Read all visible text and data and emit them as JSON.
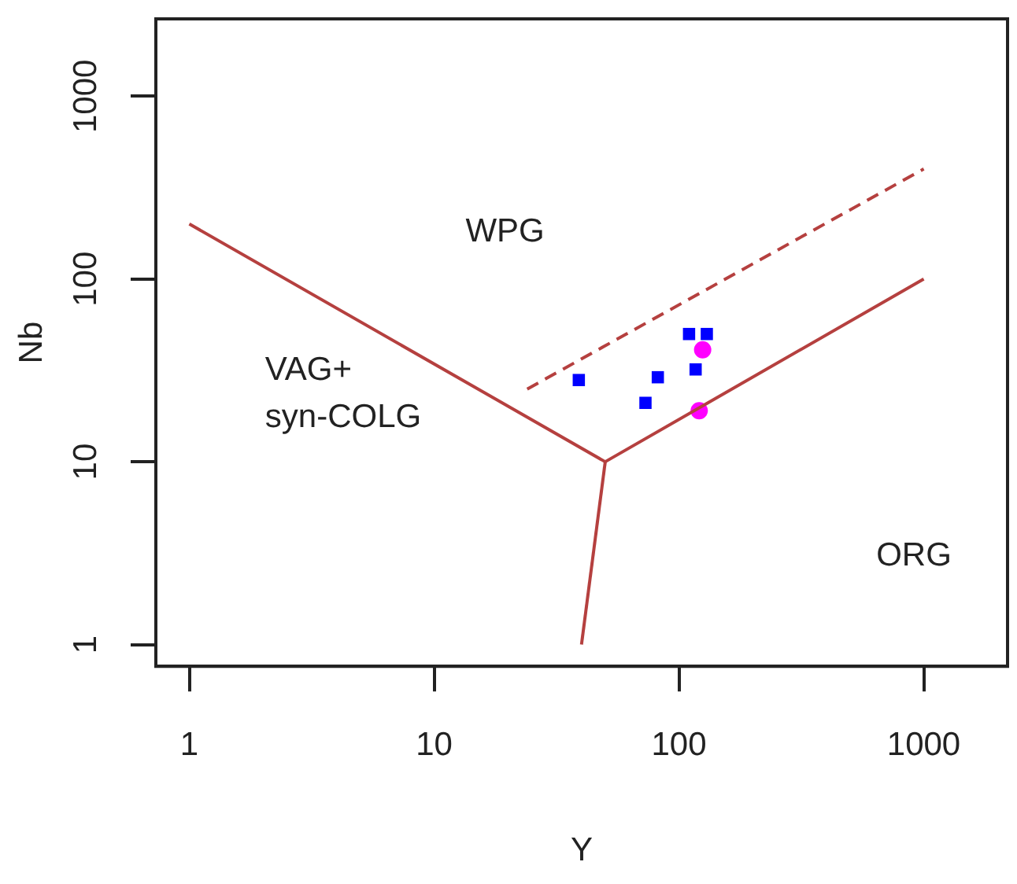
{
  "chart_data": {
    "type": "scatter",
    "xlabel": "Y",
    "ylabel": "Nb",
    "log": "xy",
    "xlim": [
      0.73,
      2200
    ],
    "ylim": [
      0.76,
      2650
    ],
    "xticks": [
      1,
      10,
      100,
      1000
    ],
    "yticks": [
      1,
      10,
      100,
      1000
    ],
    "grid": false,
    "legend": false,
    "series": [
      {
        "type": "line",
        "color": "#b5403f",
        "line_style": "solid",
        "marker": "none",
        "x": [
          1,
          50,
          1000
        ],
        "values": [
          200,
          10,
          100
        ]
      },
      {
        "type": "line",
        "color": "#b5403f",
        "line_style": "solid",
        "marker": "none",
        "x": [
          50,
          40
        ],
        "values": [
          10,
          1
        ]
      },
      {
        "type": "line",
        "color": "#b5403f",
        "line_style": "dashed",
        "marker": "none",
        "x": [
          24,
          1000
        ],
        "values": [
          25,
          400
        ]
      },
      {
        "type": "scatter",
        "color": "#0000ff",
        "marker": "square",
        "x": [
          39,
          82,
          73,
          117,
          110,
          130
        ],
        "values": [
          28,
          29,
          21,
          32,
          50,
          50
        ]
      },
      {
        "type": "scatter",
        "color": "#ff00ff",
        "marker": "circle",
        "x": [
          125,
          121
        ],
        "values": [
          41,
          19
        ]
      }
    ],
    "annotations": [
      "WPG",
      "VAG+\nsyn-COLG",
      "ORG"
    ]
  }
}
